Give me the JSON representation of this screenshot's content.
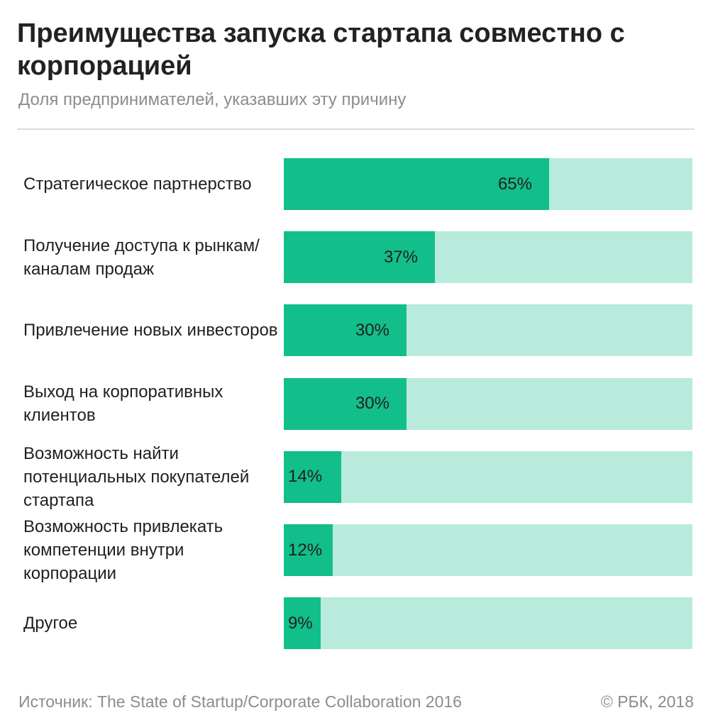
{
  "chart_data": {
    "type": "bar",
    "orientation": "horizontal",
    "title": "Преимущества запуска стартапа совместно с корпорацией",
    "subtitle": "Доля предпринимателей, указавших эту причину",
    "categories": [
      "Стратегическое партнерство",
      "Получение доступа к рынкам/каналам продаж",
      "Привлечение новых инвесторов",
      "Выход на корпоративных клиентов",
      "Возможность найти потенциальных покупателей стартапа",
      "Возможность привлекать компетенции внутри корпорации",
      "Другое"
    ],
    "values": [
      65,
      37,
      30,
      30,
      14,
      12,
      9
    ],
    "value_labels": [
      "65%",
      "37%",
      "30%",
      "30%",
      "14%",
      "12%",
      "9%"
    ],
    "xlim": [
      0,
      100
    ],
    "fill_color": "#12be8a",
    "track_color": "#b8ebdb",
    "grid": false,
    "legend": "none"
  },
  "footer": {
    "source": "Источник: The State of Startup/Corporate Collaboration 2016",
    "copyright": "© РБК, 2018"
  }
}
